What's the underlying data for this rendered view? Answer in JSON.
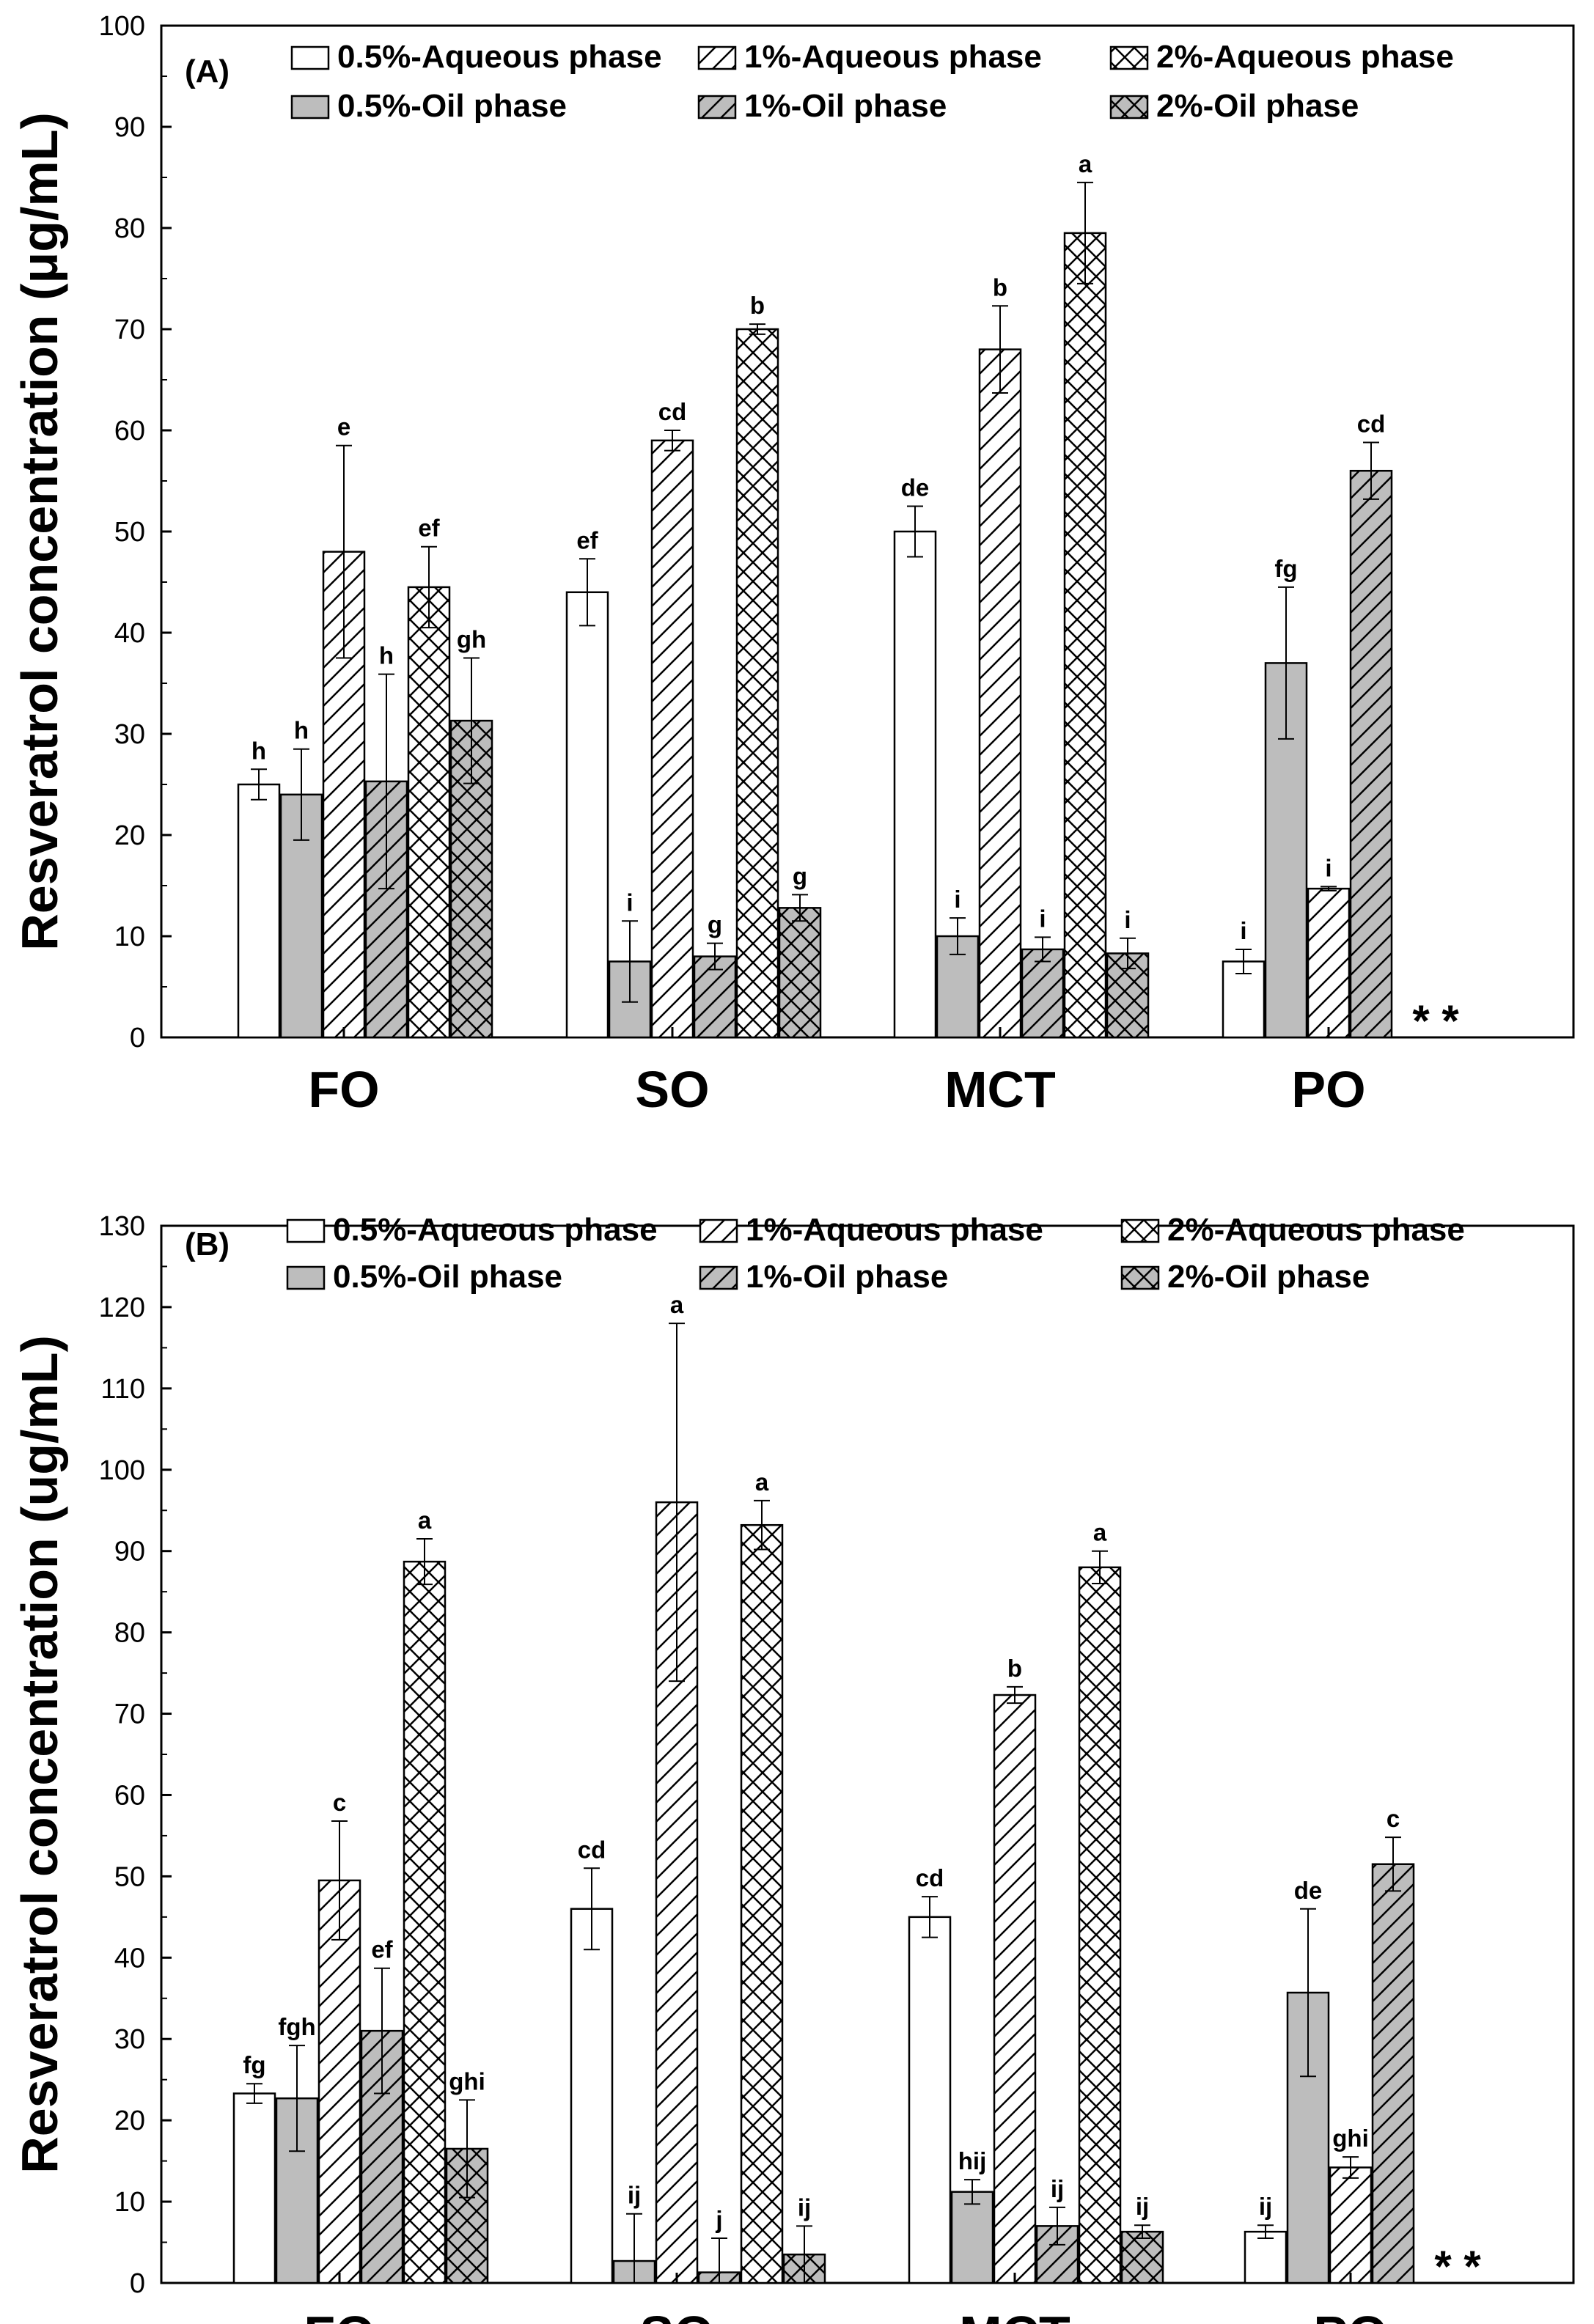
{
  "colors": {
    "aqueous_fill": "#ffffff",
    "oil_fill": "#bdbdbd",
    "stroke": "#000000"
  },
  "legend_order": [
    0,
    2,
    4,
    1,
    3,
    5
  ],
  "chart_data": [
    {
      "type": "bar",
      "panel_label": "(A)",
      "ylabel": "Resveratrol concentration (μg/mL)",
      "ylim": [
        0,
        100
      ],
      "yticks": [
        "0",
        "10",
        "20",
        "30",
        "40",
        "50",
        "60",
        "70",
        "80",
        "90",
        "100"
      ],
      "categories": [
        "FO",
        "SO",
        "MCT",
        "PO"
      ],
      "grid": false,
      "legend_placement": "top",
      "series": [
        {
          "name": "0.5%-Aqueous phase",
          "pattern": "none",
          "values": [
            25,
            44,
            50,
            7.5
          ],
          "errors": [
            1.5,
            3.3,
            2.5,
            1.2
          ],
          "labels": [
            "h",
            "ef",
            "de",
            "i"
          ]
        },
        {
          "name": "0.5%-Oil phase",
          "pattern": "gray",
          "values": [
            24,
            7.5,
            10,
            37
          ],
          "errors": [
            4.5,
            4,
            1.8,
            7.5
          ],
          "labels": [
            "h",
            "i",
            "i",
            "fg"
          ]
        },
        {
          "name": "1%-Aqueous phase",
          "pattern": "diag",
          "values": [
            48,
            59,
            68,
            14.7
          ],
          "errors": [
            10.5,
            1,
            4.3,
            0.2
          ],
          "labels": [
            "e",
            "cd",
            "b",
            "i"
          ]
        },
        {
          "name": "1%-Oil phase",
          "pattern": "graydiag",
          "values": [
            25.3,
            8,
            8.7,
            56
          ],
          "errors": [
            10.6,
            1.3,
            1.2,
            2.8
          ],
          "labels": [
            "h",
            "g",
            "i",
            "cd"
          ]
        },
        {
          "name": "2%-Aqueous phase",
          "pattern": "cross",
          "values": [
            44.5,
            70,
            79.5,
            null
          ],
          "errors": [
            4,
            0.5,
            5,
            0
          ],
          "labels": [
            "ef",
            "b",
            "a",
            ""
          ]
        },
        {
          "name": "2%-Oil phase",
          "pattern": "graycross",
          "values": [
            31.3,
            12.8,
            8.3,
            null
          ],
          "errors": [
            6.2,
            1.3,
            1.5,
            0
          ],
          "labels": [
            "gh",
            "g",
            "i",
            ""
          ]
        }
      ],
      "annotations": [
        {
          "category": "PO",
          "text": "* *"
        }
      ]
    },
    {
      "type": "bar",
      "panel_label": "(B)",
      "ylabel": "Resveratrol concentration (ug/mL)",
      "ylim": [
        0,
        130
      ],
      "yticks": [
        "0",
        "10",
        "20",
        "30",
        "40",
        "50",
        "60",
        "70",
        "80",
        "90",
        "100",
        "110",
        "120",
        "130"
      ],
      "categories": [
        "FO",
        "SO",
        "MCT",
        "PO"
      ],
      "grid": false,
      "legend_placement": "top",
      "series": [
        {
          "name": "0.5%-Aqueous phase",
          "pattern": "none",
          "values": [
            23.3,
            46,
            45,
            6.3
          ],
          "errors": [
            1.2,
            5,
            2.5,
            0.8
          ],
          "labels": [
            "fg",
            "cd",
            "cd",
            "ij"
          ]
        },
        {
          "name": "0.5%-Oil phase",
          "pattern": "gray",
          "values": [
            22.7,
            2.7,
            11.2,
            35.7
          ],
          "errors": [
            6.5,
            5.8,
            1.5,
            10.3
          ],
          "labels": [
            "fgh",
            "ij",
            "hij",
            "de"
          ]
        },
        {
          "name": "1%-Aqueous phase",
          "pattern": "diag",
          "values": [
            49.5,
            96,
            72.3,
            14.2
          ],
          "errors": [
            7.3,
            22,
            1,
            1.3
          ],
          "labels": [
            "c",
            "a",
            "b",
            "ghi"
          ]
        },
        {
          "name": "1%-Oil phase",
          "pattern": "graydiag",
          "values": [
            31,
            1.3,
            7,
            51.5
          ],
          "errors": [
            7.7,
            4.2,
            2.3,
            3.3
          ],
          "labels": [
            "ef",
            "j",
            "ij",
            "c"
          ]
        },
        {
          "name": "2%-Aqueous phase",
          "pattern": "cross",
          "values": [
            88.7,
            93.2,
            88,
            null
          ],
          "errors": [
            2.8,
            3,
            2,
            0
          ],
          "labels": [
            "a",
            "a",
            "a",
            ""
          ]
        },
        {
          "name": "2%-Oil phase",
          "pattern": "graycross",
          "values": [
            16.5,
            3.5,
            6.3,
            null
          ],
          "errors": [
            6,
            3.5,
            0.8,
            0
          ],
          "labels": [
            "ghi",
            "ij",
            "ij",
            ""
          ]
        }
      ],
      "annotations": [
        {
          "category": "PO",
          "text": "* *"
        }
      ]
    }
  ]
}
